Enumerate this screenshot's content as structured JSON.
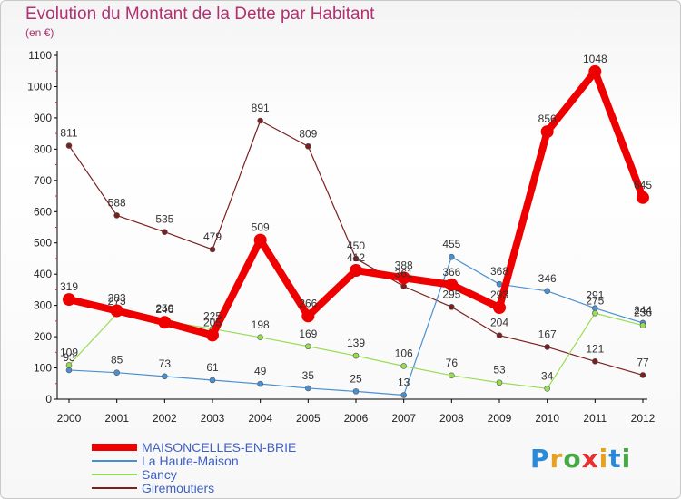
{
  "chart_data": {
    "type": "line",
    "title": "Evolution du Montant de la Dette par Habitant",
    "subtitle": "(en €)",
    "x": [
      "2000",
      "2001",
      "2002",
      "2003",
      "2004",
      "2005",
      "2006",
      "2007",
      "2008",
      "2009",
      "2010",
      "2011",
      "2012"
    ],
    "ylim": [
      0,
      1100
    ],
    "yticks": [
      0,
      100,
      200,
      300,
      400,
      500,
      600,
      700,
      800,
      900,
      1000,
      1100
    ],
    "grid": false,
    "legend_position": "bottom-left",
    "series": [
      {
        "name": "MAISONCELLES-EN-BRIE",
        "color": "#ee0000",
        "values": [
          319,
          283,
          246,
          205,
          509,
          266,
          412,
          388,
          366,
          293,
          856,
          1048,
          645
        ]
      },
      {
        "name": "La Haute-Maison",
        "color": "#4a90d0",
        "values": [
          93,
          85,
          73,
          61,
          49,
          35,
          25,
          13,
          455,
          368,
          346,
          291,
          244
        ]
      },
      {
        "name": "Sancy",
        "color": "#99dd55",
        "values": [
          109,
          273,
          250,
          225,
          198,
          169,
          139,
          106,
          76,
          53,
          34,
          275,
          236
        ]
      },
      {
        "name": "Giremoutiers",
        "color": "#7a2020",
        "values": [
          811,
          588,
          535,
          479,
          891,
          809,
          450,
          361,
          295,
          204,
          167,
          121,
          77
        ]
      }
    ]
  },
  "brand": {
    "letters": [
      "P",
      "r",
      "o",
      "x",
      "i",
      "t",
      "i"
    ],
    "colors": [
      "#2a8ad8",
      "#e8a020",
      "#44aa44",
      "#e83030",
      "#e8a020",
      "#2a8ad8",
      "#44aa44"
    ]
  }
}
